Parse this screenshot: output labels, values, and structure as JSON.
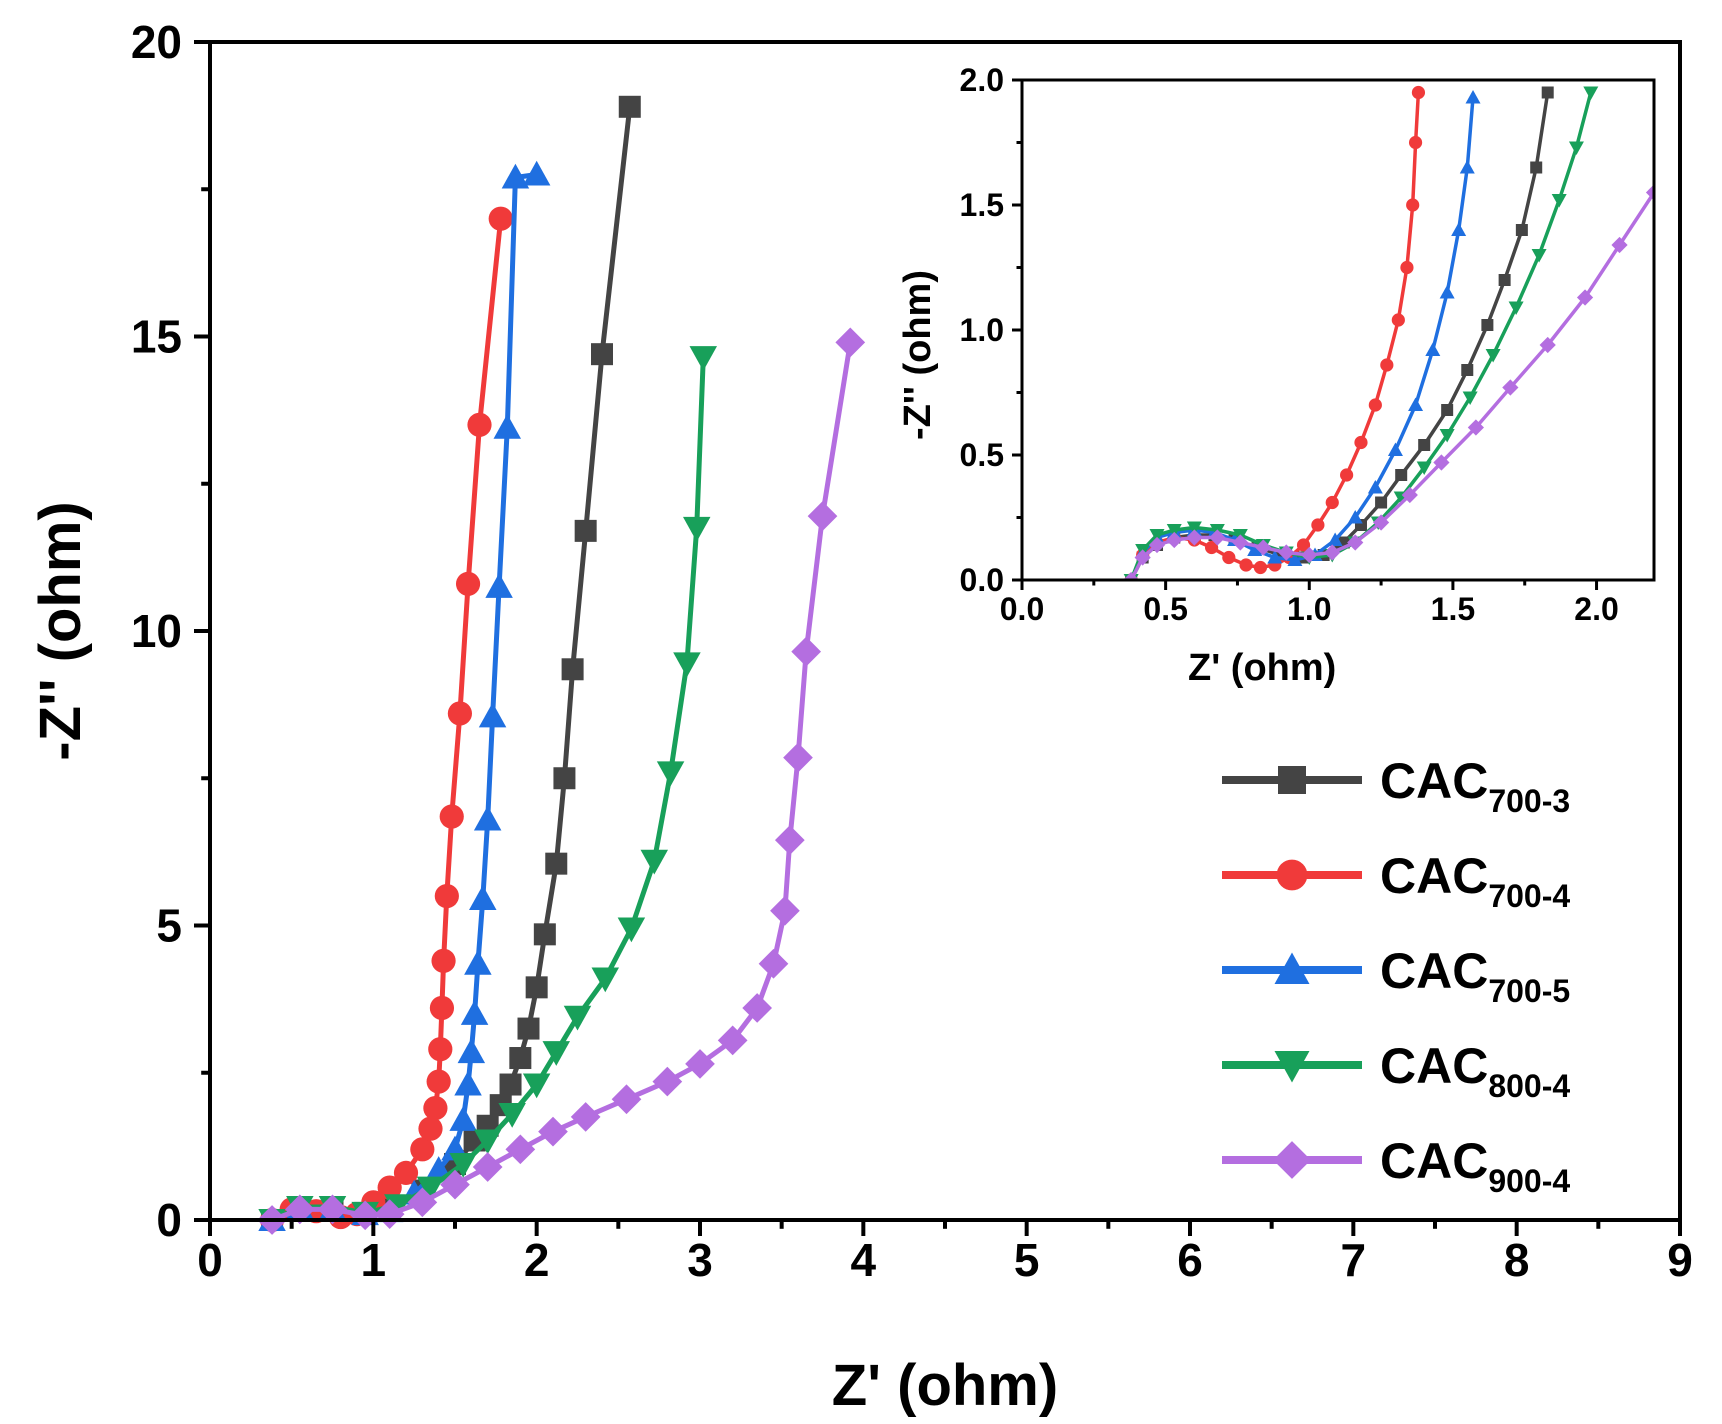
{
  "chart_data": [
    {
      "id": "main",
      "type": "line",
      "title": "",
      "xlabel": "Z' (ohm)",
      "ylabel": "-Z'' (ohm)",
      "xlim": [
        0,
        9
      ],
      "ylim": [
        0,
        20
      ],
      "xticks": [
        0,
        1,
        2,
        3,
        4,
        5,
        6,
        7,
        8,
        9
      ],
      "yticks": [
        0,
        5,
        10,
        15,
        20
      ],
      "xtick_labels": [
        "0",
        "1",
        "2",
        "3",
        "4",
        "5",
        "6",
        "7",
        "8",
        "9"
      ],
      "ytick_labels": [
        "0",
        "5",
        "10",
        "15",
        "20"
      ],
      "legend_position": "bottom-right",
      "series": [
        {
          "name": "CAC700-3",
          "label_main": "CAC",
          "label_sub": "700-3",
          "color": "#444444",
          "marker": "square",
          "x": [
            0.38,
            0.55,
            0.75,
            0.95,
            1.1,
            1.3,
            1.5,
            1.62,
            1.7,
            1.78,
            1.84,
            1.9,
            1.95,
            2.0,
            2.05,
            2.12,
            2.17,
            2.22,
            2.3,
            2.4,
            2.57
          ],
          "y": [
            0.0,
            0.22,
            0.2,
            0.12,
            0.2,
            0.5,
            0.95,
            1.35,
            1.6,
            1.95,
            2.3,
            2.75,
            3.25,
            3.95,
            4.85,
            6.05,
            7.5,
            9.35,
            11.7,
            14.7,
            18.9
          ]
        },
        {
          "name": "CAC700-4",
          "label_main": "CAC",
          "label_sub": "700-4",
          "color": "#f03a3a",
          "marker": "circle",
          "x": [
            0.38,
            0.5,
            0.65,
            0.8,
            0.9,
            1.0,
            1.1,
            1.2,
            1.3,
            1.35,
            1.38,
            1.4,
            1.41,
            1.42,
            1.43,
            1.45,
            1.48,
            1.53,
            1.58,
            1.65,
            1.78
          ],
          "y": [
            0.0,
            0.18,
            0.15,
            0.05,
            0.1,
            0.3,
            0.55,
            0.8,
            1.2,
            1.55,
            1.9,
            2.35,
            2.9,
            3.6,
            4.4,
            5.5,
            6.85,
            8.6,
            10.8,
            13.5,
            17.0
          ]
        },
        {
          "name": "CAC700-5",
          "label_main": "CAC",
          "label_sub": "700-5",
          "color": "#1f6fe0",
          "marker": "triangle-up",
          "x": [
            0.38,
            0.55,
            0.75,
            0.95,
            1.1,
            1.25,
            1.4,
            1.5,
            1.55,
            1.58,
            1.6,
            1.62,
            1.64,
            1.67,
            1.7,
            1.73,
            1.77,
            1.82,
            1.87,
            2.0
          ],
          "y": [
            0.0,
            0.2,
            0.18,
            0.1,
            0.15,
            0.45,
            0.85,
            1.2,
            1.7,
            2.3,
            2.85,
            3.5,
            4.35,
            5.45,
            6.8,
            8.55,
            10.75,
            13.45,
            17.7,
            17.75
          ]
        },
        {
          "name": "CAC800-4",
          "label_main": "CAC",
          "label_sub": "800-4",
          "color": "#18a05a",
          "marker": "triangle-down",
          "x": [
            0.38,
            0.55,
            0.75,
            0.95,
            1.15,
            1.35,
            1.55,
            1.7,
            1.85,
            2.0,
            2.12,
            2.25,
            2.42,
            2.58,
            2.72,
            2.82,
            2.92,
            2.98,
            3.02
          ],
          "y": [
            0.0,
            0.22,
            0.22,
            0.12,
            0.25,
            0.55,
            0.95,
            1.35,
            1.8,
            2.3,
            2.85,
            3.45,
            4.1,
            4.95,
            6.1,
            7.6,
            9.45,
            11.75,
            14.65
          ]
        },
        {
          "name": "CAC900-4",
          "label_main": "CAC",
          "label_sub": "900-4",
          "color": "#b46ee0",
          "marker": "diamond",
          "x": [
            0.38,
            0.55,
            0.75,
            0.95,
            1.1,
            1.3,
            1.5,
            1.7,
            1.9,
            2.1,
            2.3,
            2.55,
            2.8,
            3.0,
            3.2,
            3.35,
            3.45,
            3.52,
            3.55,
            3.6,
            3.65,
            3.75,
            3.92
          ],
          "y": [
            0.0,
            0.18,
            0.18,
            0.08,
            0.1,
            0.3,
            0.6,
            0.9,
            1.2,
            1.5,
            1.75,
            2.05,
            2.35,
            2.65,
            3.05,
            3.6,
            4.35,
            5.25,
            6.45,
            7.85,
            9.65,
            11.95,
            14.9
          ]
        }
      ]
    },
    {
      "id": "inset",
      "type": "line",
      "title": "",
      "xlabel": "Z' (ohm)",
      "ylabel": "-Z'' (ohm)",
      "xlim": [
        0,
        2.2
      ],
      "ylim": [
        0,
        2.0
      ],
      "xticks": [
        0,
        0.5,
        1.0,
        1.5,
        2.0
      ],
      "yticks": [
        0,
        0.5,
        1.0,
        1.5,
        2.0
      ],
      "xtick_labels": [
        "0.0",
        "0.5",
        "1.0",
        "1.5",
        "2.0"
      ],
      "ytick_labels": [
        "0.0",
        "0.5",
        "1.0",
        "1.5",
        "2.0"
      ],
      "series": [
        {
          "name": "CAC700-3",
          "color": "#444444",
          "marker": "square",
          "x": [
            0.38,
            0.42,
            0.47,
            0.53,
            0.6,
            0.67,
            0.74,
            0.82,
            0.9,
            0.98,
            1.05,
            1.12,
            1.18,
            1.25,
            1.32,
            1.4,
            1.48,
            1.55,
            1.62,
            1.68,
            1.74,
            1.79,
            1.83
          ],
          "y": [
            0.0,
            0.09,
            0.14,
            0.17,
            0.18,
            0.18,
            0.16,
            0.13,
            0.1,
            0.09,
            0.1,
            0.15,
            0.22,
            0.31,
            0.42,
            0.54,
            0.68,
            0.84,
            1.02,
            1.2,
            1.4,
            1.65,
            1.95
          ]
        },
        {
          "name": "CAC700-4",
          "color": "#f03a3a",
          "marker": "circle",
          "x": [
            0.38,
            0.42,
            0.47,
            0.53,
            0.6,
            0.66,
            0.72,
            0.78,
            0.83,
            0.88,
            0.93,
            0.98,
            1.03,
            1.08,
            1.13,
            1.18,
            1.23,
            1.27,
            1.31,
            1.34,
            1.36,
            1.37,
            1.38
          ],
          "y": [
            0.0,
            0.1,
            0.15,
            0.17,
            0.16,
            0.13,
            0.09,
            0.06,
            0.05,
            0.06,
            0.09,
            0.14,
            0.22,
            0.31,
            0.42,
            0.55,
            0.7,
            0.86,
            1.04,
            1.25,
            1.5,
            1.75,
            1.95
          ]
        },
        {
          "name": "CAC700-5",
          "color": "#1f6fe0",
          "marker": "triangle-up",
          "x": [
            0.38,
            0.42,
            0.47,
            0.53,
            0.6,
            0.67,
            0.74,
            0.81,
            0.88,
            0.95,
            1.02,
            1.09,
            1.16,
            1.23,
            1.3,
            1.37,
            1.43,
            1.48,
            1.52,
            1.55,
            1.57
          ],
          "y": [
            0.0,
            0.11,
            0.17,
            0.19,
            0.2,
            0.19,
            0.16,
            0.12,
            0.09,
            0.08,
            0.1,
            0.16,
            0.25,
            0.37,
            0.52,
            0.7,
            0.92,
            1.15,
            1.4,
            1.65,
            1.93
          ]
        },
        {
          "name": "CAC800-4",
          "color": "#18a05a",
          "marker": "triangle-down",
          "x": [
            0.38,
            0.42,
            0.47,
            0.53,
            0.6,
            0.68,
            0.76,
            0.84,
            0.92,
            1.0,
            1.08,
            1.16,
            1.24,
            1.32,
            1.4,
            1.48,
            1.56,
            1.64,
            1.72,
            1.8,
            1.87,
            1.93,
            1.98
          ],
          "y": [
            0.0,
            0.12,
            0.18,
            0.2,
            0.21,
            0.2,
            0.18,
            0.14,
            0.11,
            0.09,
            0.1,
            0.15,
            0.23,
            0.33,
            0.45,
            0.58,
            0.73,
            0.9,
            1.09,
            1.3,
            1.52,
            1.73,
            1.95
          ]
        },
        {
          "name": "CAC900-4",
          "color": "#b46ee0",
          "marker": "diamond",
          "x": [
            0.38,
            0.42,
            0.47,
            0.53,
            0.6,
            0.68,
            0.76,
            0.84,
            0.92,
            1.0,
            1.08,
            1.16,
            1.25,
            1.35,
            1.46,
            1.58,
            1.7,
            1.83,
            1.96,
            2.08,
            2.2
          ],
          "y": [
            0.0,
            0.09,
            0.14,
            0.16,
            0.17,
            0.17,
            0.15,
            0.13,
            0.11,
            0.1,
            0.11,
            0.15,
            0.23,
            0.34,
            0.47,
            0.61,
            0.77,
            0.94,
            1.13,
            1.34,
            1.55
          ]
        }
      ]
    }
  ]
}
